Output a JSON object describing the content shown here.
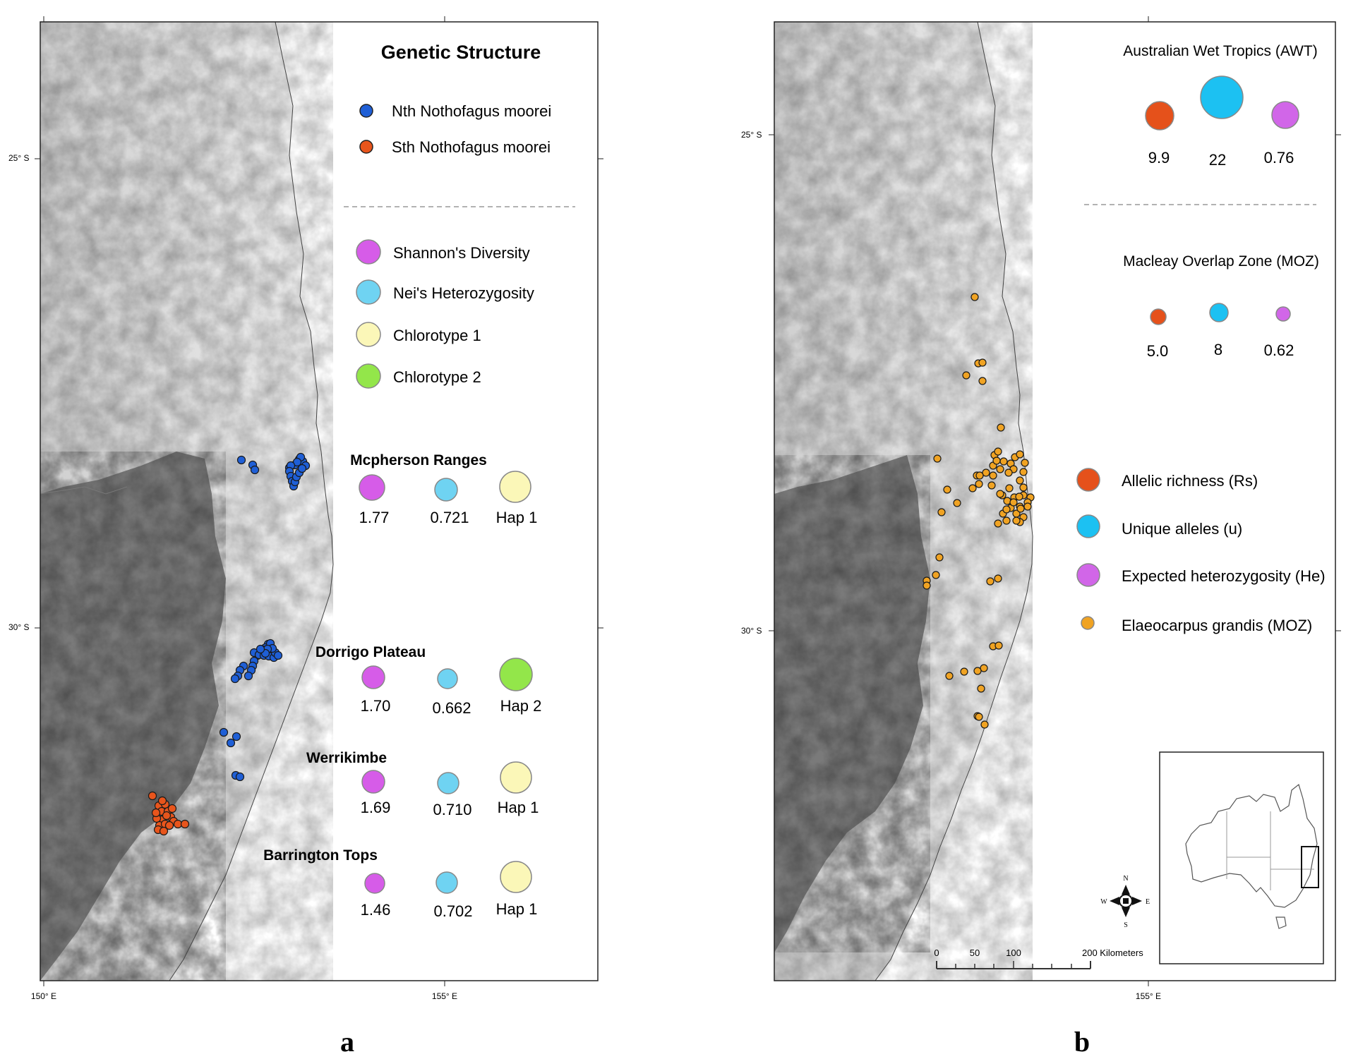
{
  "panel_a": {
    "label": "a",
    "axis": {
      "lat_top": "25° S",
      "lat_mid": "30° S",
      "lon_left": "150° E",
      "lon_mid": "155° E"
    },
    "legend": {
      "title": "Genetic Structure",
      "north": "Nth Nothofagus moorei",
      "south": "Sth Nothofagus moorei",
      "shannon": "Shannon's Diversity",
      "nei": "Nei's Heterozygosity",
      "chl1": "Chlorotype 1",
      "chl2": "Chlorotype 2"
    },
    "sites": [
      {
        "name": "Mcpherson Ranges",
        "shannon": "1.77",
        "nei": "0.721",
        "hap": "Hap 1"
      },
      {
        "name": "Dorrigo Plateau",
        "shannon": "1.70",
        "nei": "0.662",
        "hap": "Hap 2"
      },
      {
        "name": "Werrikimbe",
        "shannon": "1.69",
        "nei": "0.710",
        "hap": "Hap 1"
      },
      {
        "name": "Barrington Tops",
        "shannon": "1.46",
        "nei": "0.702",
        "hap": "Hap 1"
      }
    ]
  },
  "panel_b": {
    "label": "b",
    "axis": {
      "lat_top": "25° S",
      "lat_mid": "30° S",
      "lon_mid": "155° E"
    },
    "awt": {
      "title": "Australian Wet Tropics (AWT)",
      "rs": "9.9",
      "u": "22",
      "he": "0.76"
    },
    "moz": {
      "title": "Macleay Overlap Zone (MOZ)",
      "rs": "5.0",
      "u": "8",
      "he": "0.62"
    },
    "legend": {
      "rs": "Allelic richness (Rs)",
      "u": "Unique alleles (u)",
      "he": "Expected heterozygosity (He)",
      "eg": "Elaeocarpus grandis (MOZ)"
    },
    "scale": {
      "t0": "0",
      "t50": "50",
      "t100": "100",
      "t200": "200 Kilometers"
    },
    "compass": {
      "n": "N",
      "s": "S",
      "e": "E",
      "w": "W"
    }
  },
  "colors": {
    "north_pt": "#1f5fd6",
    "south_pt": "#e8551c",
    "shannon": "#d65ce8",
    "nei": "#6fd3f2",
    "chl1": "#fbf7b8",
    "chl2": "#93e64a",
    "rs": "#e5511b",
    "u": "#1cc1f2",
    "he": "#d166e8",
    "eg": "#f0a323"
  }
}
